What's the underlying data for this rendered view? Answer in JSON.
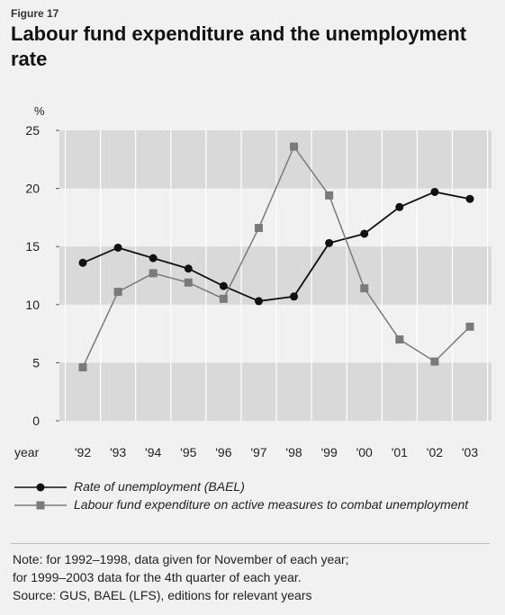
{
  "figure_label": "Figure 17",
  "title": "Labour fund expenditure and the unemployment rate",
  "chart_data": {
    "type": "line",
    "title": "Labour fund expenditure and the unemployment rate",
    "ylabel": "%",
    "xlabel": "year",
    "ylim": [
      0,
      25
    ],
    "yticks": [
      0,
      5,
      10,
      15,
      20,
      25
    ],
    "categories": [
      "'92",
      "'93",
      "'94",
      "'95",
      "'96",
      "'97",
      "'98",
      "'99",
      "'00",
      "'01",
      "'02",
      "'03"
    ],
    "series": [
      {
        "name": "Rate of unemployment (BAEL)",
        "marker": "circle",
        "color": "#111111",
        "values": [
          13.6,
          14.9,
          14.0,
          13.1,
          11.6,
          10.3,
          10.7,
          15.3,
          16.1,
          18.4,
          19.7,
          19.1
        ]
      },
      {
        "name": "Labour fund expenditure on active measures to combat unemployment",
        "marker": "square",
        "color": "#7a7a7a",
        "values": [
          4.6,
          11.1,
          12.7,
          11.9,
          10.5,
          16.6,
          23.6,
          19.4,
          11.4,
          7.0,
          5.1,
          8.1
        ]
      }
    ],
    "bands": [
      [
        0,
        5
      ],
      [
        10,
        15
      ],
      [
        20,
        25
      ]
    ],
    "colors": {
      "band": "#d9d9d9",
      "grid": "#ffffff",
      "background": "#f1f1f1"
    }
  },
  "note": {
    "lines": [
      "Note: for 1992–1998, data given for November of each year;",
      "for 1999–2003 data for the 4th quarter of each year.",
      "Source: GUS, BAEL (LFS), editions for relevant years"
    ]
  }
}
